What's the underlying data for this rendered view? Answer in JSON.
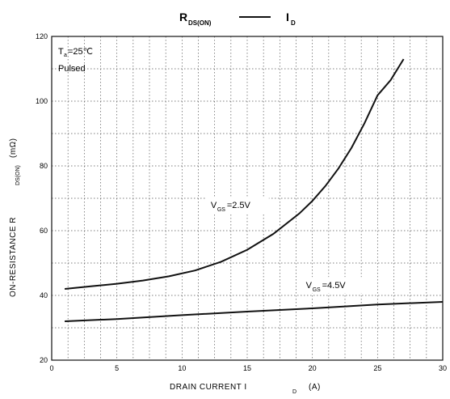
{
  "chart_data": {
    "type": "line",
    "title": {
      "main": "R",
      "sub": "DS(ON)",
      "sep": "—",
      "tail": "I",
      "tail_sub": "D"
    },
    "xlabel": {
      "main": "DRAIN CURRENT   I",
      "sub": "D",
      "unit": "(A)"
    },
    "ylabel": {
      "main": "ON-RESISTANCE  R",
      "sub": "DS(ON)",
      "unit": "(mΩ)"
    },
    "annotation": {
      "line1_main": "T",
      "line1_sub": "a",
      "line1_rest": "=25℃",
      "line2": "Pulsed"
    },
    "xlim": [
      0,
      30
    ],
    "ylim": [
      20,
      120
    ],
    "xticks": [
      0,
      5,
      10,
      15,
      20,
      25,
      30
    ],
    "yticks": [
      20,
      40,
      60,
      80,
      100,
      120
    ],
    "x_minor_step": 1.25,
    "y_minor_step": 10,
    "grid": true,
    "series": [
      {
        "name": {
          "main": "V",
          "sub": "GS",
          "rest": "=2.5V"
        },
        "label_at": [
          12.2,
          67
        ],
        "x": [
          1,
          3,
          5,
          7,
          9,
          11,
          13,
          15,
          17,
          19,
          20,
          21,
          22,
          23,
          24,
          25,
          26,
          27
        ],
        "y": [
          42,
          42.8,
          43.6,
          44.6,
          45.9,
          47.7,
          50.4,
          54.1,
          59,
          65.3,
          69.2,
          73.8,
          79.2,
          85.6,
          93.2,
          101.8,
          106.5,
          113
        ]
      },
      {
        "name": {
          "main": "V",
          "sub": "GS",
          "rest": "=4.5V"
        },
        "label_at": [
          19.5,
          42.2
        ],
        "x": [
          1,
          5,
          10,
          15,
          20,
          25,
          30
        ],
        "y": [
          32,
          32.7,
          33.9,
          35,
          36,
          37.2,
          38
        ]
      }
    ]
  }
}
